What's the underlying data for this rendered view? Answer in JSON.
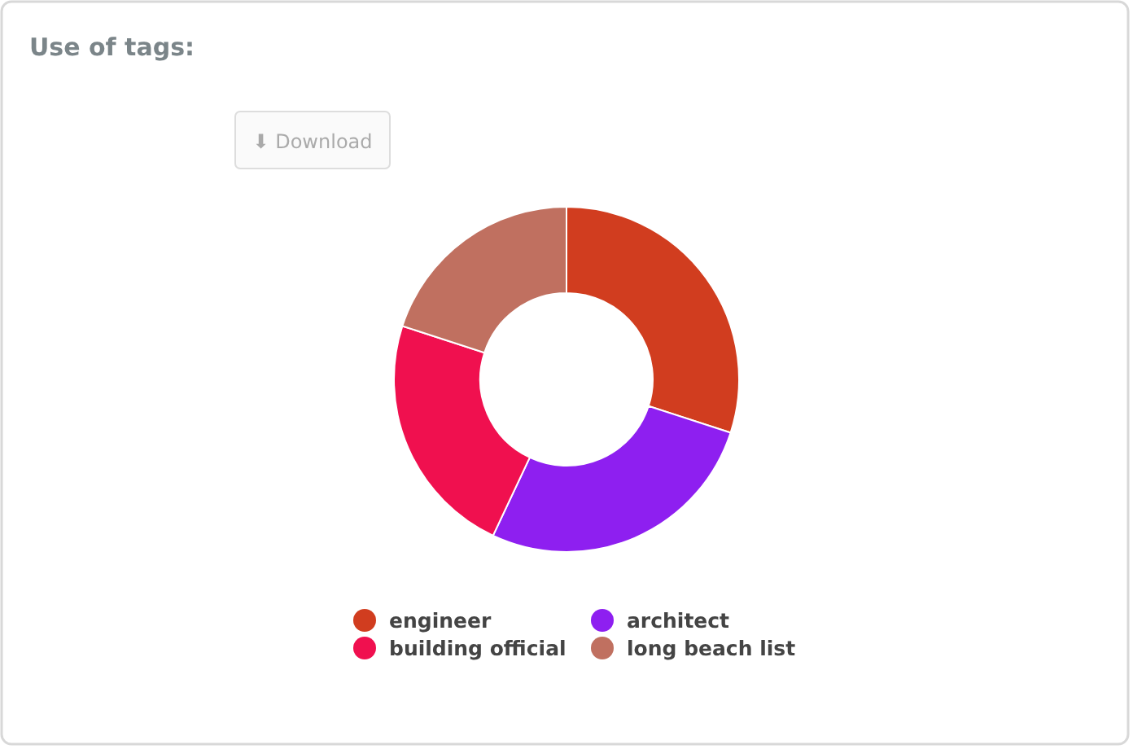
{
  "chart_data": {
    "type": "donut",
    "title": "Use of tags:",
    "categories": [
      "engineer",
      "architect",
      "building official",
      "long beach list"
    ],
    "values": [
      30,
      27,
      23,
      20
    ],
    "colors": [
      "#d13d1f",
      "#8e1ff0",
      "#f0104f",
      "#c07060"
    ],
    "annotations": [
      "⬇ Download"
    ],
    "legend": "bottom"
  }
}
